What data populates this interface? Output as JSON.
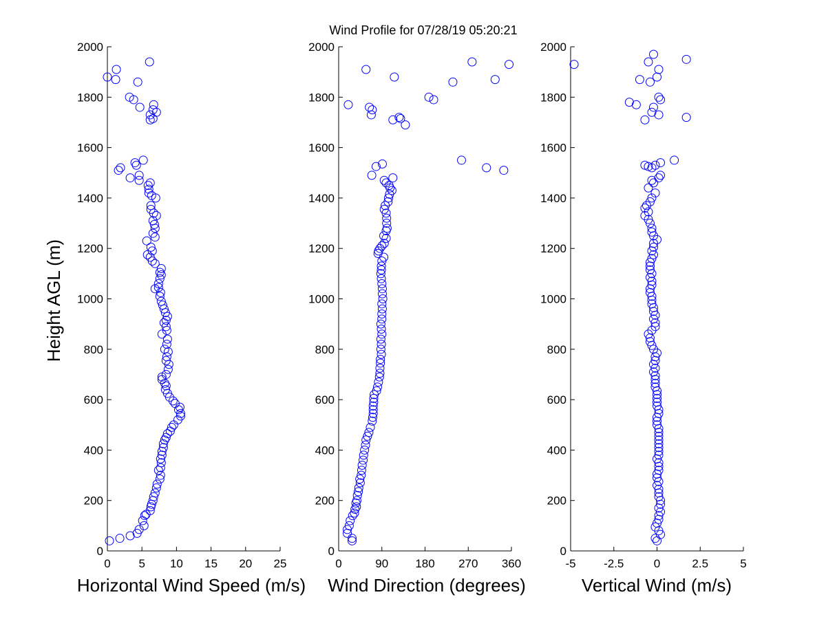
{
  "title": "Wind Profile for  07/28/19 05:20:21",
  "ylabel": "Height AGL (m)",
  "chart_data": [
    {
      "type": "scatter",
      "xlabel": "Horizontal Wind Speed (m/s)",
      "ylabel": "Height AGL (m)",
      "xlim": [
        0,
        25
      ],
      "ylim": [
        0,
        2000
      ],
      "xticks": [
        "0",
        "5",
        "10",
        "15",
        "20",
        "25"
      ],
      "yticks": [
        "0",
        "200",
        "400",
        "600",
        "800",
        "1000",
        "1200",
        "1400",
        "1600",
        "1800",
        "2000"
      ],
      "marker_color": "#0000ff",
      "grid": false,
      "points": [
        [
          0.3,
          40
        ],
        [
          1.8,
          50
        ],
        [
          3.3,
          60
        ],
        [
          4.3,
          70
        ],
        [
          4.6,
          85
        ],
        [
          5.3,
          100
        ],
        [
          5.1,
          120
        ],
        [
          5.4,
          140
        ],
        [
          5.6,
          145
        ],
        [
          6.2,
          160
        ],
        [
          6.3,
          175
        ],
        [
          6.4,
          185
        ],
        [
          6.6,
          200
        ],
        [
          6.7,
          215
        ],
        [
          6.9,
          230
        ],
        [
          7.1,
          250
        ],
        [
          7.2,
          265
        ],
        [
          7.6,
          285
        ],
        [
          7.7,
          300
        ],
        [
          7.4,
          320
        ],
        [
          7.7,
          330
        ],
        [
          7.8,
          350
        ],
        [
          7.7,
          365
        ],
        [
          7.9,
          380
        ],
        [
          7.9,
          395
        ],
        [
          8.1,
          410
        ],
        [
          8.1,
          425
        ],
        [
          8.3,
          440
        ],
        [
          8.5,
          450
        ],
        [
          8.7,
          465
        ],
        [
          9.1,
          475
        ],
        [
          9.3,
          490
        ],
        [
          9.6,
          500
        ],
        [
          10.2,
          520
        ],
        [
          10.6,
          535
        ],
        [
          10.6,
          545
        ],
        [
          10.3,
          560
        ],
        [
          10.5,
          570
        ],
        [
          9.8,
          585
        ],
        [
          9.5,
          595
        ],
        [
          9.0,
          610
        ],
        [
          8.7,
          625
        ],
        [
          8.4,
          640
        ],
        [
          8.5,
          655
        ],
        [
          8.3,
          665
        ],
        [
          7.9,
          680
        ],
        [
          7.9,
          690
        ],
        [
          8.5,
          700
        ],
        [
          8.8,
          720
        ],
        [
          8.9,
          740
        ],
        [
          8.5,
          755
        ],
        [
          8.6,
          770
        ],
        [
          8.8,
          790
        ],
        [
          8.3,
          800
        ],
        [
          8.6,
          820
        ],
        [
          8.7,
          840
        ],
        [
          7.9,
          860
        ],
        [
          8.6,
          875
        ],
        [
          8.5,
          890
        ],
        [
          8.2,
          905
        ],
        [
          8.5,
          915
        ],
        [
          8.7,
          930
        ],
        [
          8.4,
          945
        ],
        [
          8.2,
          960
        ],
        [
          8.0,
          975
        ],
        [
          7.8,
          990
        ],
        [
          7.6,
          1010
        ],
        [
          7.7,
          1025
        ],
        [
          6.9,
          1040
        ],
        [
          7.4,
          1045
        ],
        [
          7.4,
          1060
        ],
        [
          7.6,
          1080
        ],
        [
          7.8,
          1095
        ],
        [
          7.6,
          1105
        ],
        [
          7.8,
          1120
        ],
        [
          6.9,
          1140
        ],
        [
          6.5,
          1150
        ],
        [
          6.2,
          1165
        ],
        [
          5.8,
          1175
        ],
        [
          6.5,
          1190
        ],
        [
          6.3,
          1205
        ],
        [
          5.7,
          1230
        ],
        [
          6.9,
          1245
        ],
        [
          6.6,
          1260
        ],
        [
          6.9,
          1280
        ],
        [
          6.8,
          1295
        ],
        [
          6.6,
          1310
        ],
        [
          7.1,
          1330
        ],
        [
          6.7,
          1340
        ],
        [
          6.3,
          1355
        ],
        [
          6.3,
          1370
        ],
        [
          7.0,
          1400
        ],
        [
          6.4,
          1410
        ],
        [
          6.0,
          1420
        ],
        [
          6.0,
          1435
        ],
        [
          5.9,
          1450
        ],
        [
          6.2,
          1460
        ],
        [
          4.6,
          1470
        ],
        [
          3.3,
          1480
        ],
        [
          4.6,
          1490
        ],
        [
          4.2,
          1530
        ],
        [
          4.0,
          1540
        ],
        [
          5.2,
          1550
        ],
        [
          1.6,
          1510
        ],
        [
          1.9,
          1520
        ],
        [
          6.2,
          1710
        ],
        [
          6.6,
          1715
        ],
        [
          6.2,
          1730
        ],
        [
          7.1,
          1740
        ],
        [
          6.6,
          1750
        ],
        [
          6.7,
          1770
        ],
        [
          3.8,
          1790
        ],
        [
          3.2,
          1800
        ],
        [
          4.7,
          1760
        ],
        [
          4.4,
          1860
        ],
        [
          0.0,
          1880
        ],
        [
          1.2,
          1870
        ],
        [
          1.3,
          1910
        ],
        [
          6.1,
          1940
        ]
      ]
    },
    {
      "type": "scatter",
      "xlabel": "Wind Direction (degrees)",
      "xlim": [
        0,
        360
      ],
      "ylim": [
        0,
        2000
      ],
      "xticks": [
        "0",
        "90",
        "180",
        "270",
        "360"
      ],
      "yticks": [
        "0",
        "200",
        "400",
        "600",
        "800",
        "1000",
        "1200",
        "1400",
        "1600",
        "1800",
        "2000"
      ],
      "marker_color": "#0000ff",
      "grid": false,
      "points": [
        [
          28,
          40
        ],
        [
          28,
          50
        ],
        [
          18,
          70
        ],
        [
          18,
          85
        ],
        [
          22,
          100
        ],
        [
          24,
          120
        ],
        [
          29,
          140
        ],
        [
          33,
          150
        ],
        [
          34,
          165
        ],
        [
          37,
          175
        ],
        [
          36,
          190
        ],
        [
          38,
          200
        ],
        [
          39,
          220
        ],
        [
          41,
          235
        ],
        [
          42,
          250
        ],
        [
          45,
          270
        ],
        [
          44,
          285
        ],
        [
          47,
          300
        ],
        [
          48,
          320
        ],
        [
          49,
          340
        ],
        [
          51,
          360
        ],
        [
          52,
          380
        ],
        [
          54,
          400
        ],
        [
          56,
          420
        ],
        [
          57,
          440
        ],
        [
          60,
          455
        ],
        [
          63,
          470
        ],
        [
          66,
          490
        ],
        [
          70,
          515
        ],
        [
          71,
          530
        ],
        [
          72,
          545
        ],
        [
          72,
          560
        ],
        [
          72,
          575
        ],
        [
          73,
          590
        ],
        [
          73,
          605
        ],
        [
          74,
          620
        ],
        [
          79,
          635
        ],
        [
          81,
          650
        ],
        [
          83,
          670
        ],
        [
          85,
          690
        ],
        [
          86,
          705
        ],
        [
          86,
          725
        ],
        [
          87,
          745
        ],
        [
          87,
          760
        ],
        [
          89,
          780
        ],
        [
          88,
          800
        ],
        [
          89,
          820
        ],
        [
          88,
          840
        ],
        [
          90,
          860
        ],
        [
          89,
          880
        ],
        [
          88,
          900
        ],
        [
          90,
          920
        ],
        [
          90,
          940
        ],
        [
          91,
          960
        ],
        [
          90,
          980
        ],
        [
          92,
          1000
        ],
        [
          91,
          1020
        ],
        [
          91,
          1040
        ],
        [
          90,
          1060
        ],
        [
          89,
          1080
        ],
        [
          88,
          1100
        ],
        [
          89,
          1115
        ],
        [
          89,
          1130
        ],
        [
          90,
          1150
        ],
        [
          94,
          1165
        ],
        [
          82,
          1180
        ],
        [
          83,
          1190
        ],
        [
          86,
          1200
        ],
        [
          90,
          1210
        ],
        [
          95,
          1220
        ],
        [
          99,
          1240
        ],
        [
          94,
          1250
        ],
        [
          99,
          1270
        ],
        [
          101,
          1280
        ],
        [
          100,
          1300
        ],
        [
          100,
          1320
        ],
        [
          99,
          1340
        ],
        [
          95,
          1355
        ],
        [
          97,
          1370
        ],
        [
          103,
          1385
        ],
        [
          104,
          1400
        ],
        [
          106,
          1415
        ],
        [
          111,
          1430
        ],
        [
          107,
          1440
        ],
        [
          105,
          1450
        ],
        [
          99,
          1460
        ],
        [
          95,
          1470
        ],
        [
          113,
          1480
        ],
        [
          69,
          1490
        ],
        [
          78,
          1525
        ],
        [
          91,
          1535
        ],
        [
          256,
          1550
        ],
        [
          344,
          1510
        ],
        [
          308,
          1520
        ],
        [
          113,
          1710
        ],
        [
          129,
          1715
        ],
        [
          139,
          1690
        ],
        [
          126,
          1720
        ],
        [
          68,
          1730
        ],
        [
          70,
          1750
        ],
        [
          64,
          1760
        ],
        [
          20,
          1770
        ],
        [
          188,
          1800
        ],
        [
          198,
          1790
        ],
        [
          238,
          1860
        ],
        [
          116,
          1880
        ],
        [
          57,
          1910
        ],
        [
          326,
          1870
        ],
        [
          278,
          1940
        ],
        [
          355,
          1930
        ]
      ]
    },
    {
      "type": "scatter",
      "xlabel": "Vertical Wind (m/s)",
      "xlim": [
        -5,
        5
      ],
      "ylim": [
        0,
        2000
      ],
      "xticks": [
        "-5",
        "-2.5",
        "0",
        "2.5",
        "5"
      ],
      "yticks": [
        "0",
        "200",
        "400",
        "600",
        "800",
        "1000",
        "1200",
        "1400",
        "1600",
        "1800",
        "2000"
      ],
      "marker_color": "#0000ff",
      "grid": false,
      "points": [
        [
          -0.1,
          50
        ],
        [
          0.0,
          40
        ],
        [
          0.2,
          65
        ],
        [
          0.1,
          80
        ],
        [
          -0.1,
          95
        ],
        [
          0.0,
          110
        ],
        [
          0.1,
          125
        ],
        [
          0.1,
          140
        ],
        [
          0.2,
          155
        ],
        [
          0.1,
          170
        ],
        [
          0.2,
          185
        ],
        [
          0.2,
          200
        ],
        [
          0.1,
          215
        ],
        [
          0.1,
          230
        ],
        [
          0.1,
          245
        ],
        [
          0.0,
          260
        ],
        [
          0.1,
          275
        ],
        [
          0.0,
          290
        ],
        [
          0.0,
          305
        ],
        [
          0.1,
          320
        ],
        [
          0.1,
          335
        ],
        [
          0.1,
          350
        ],
        [
          0.0,
          365
        ],
        [
          0.1,
          380
        ],
        [
          0.1,
          395
        ],
        [
          0.1,
          410
        ],
        [
          0.1,
          425
        ],
        [
          0.1,
          440
        ],
        [
          0.1,
          455
        ],
        [
          0.1,
          470
        ],
        [
          0.1,
          485
        ],
        [
          0.0,
          500
        ],
        [
          0.0,
          515
        ],
        [
          0.0,
          530
        ],
        [
          0.1,
          545
        ],
        [
          0.1,
          560
        ],
        [
          0.0,
          575
        ],
        [
          0.0,
          590
        ],
        [
          0.0,
          605
        ],
        [
          0.0,
          620
        ],
        [
          0.0,
          635
        ],
        [
          -0.1,
          650
        ],
        [
          -0.1,
          665
        ],
        [
          -0.1,
          680
        ],
        [
          -0.1,
          695
        ],
        [
          -0.2,
          710
        ],
        [
          -0.1,
          725
        ],
        [
          -0.2,
          740
        ],
        [
          -0.1,
          755
        ],
        [
          -0.1,
          770
        ],
        [
          0.0,
          785
        ],
        [
          -0.2,
          800
        ],
        [
          -0.3,
          815
        ],
        [
          -0.4,
          830
        ],
        [
          -0.4,
          845
        ],
        [
          -0.5,
          860
        ],
        [
          -0.3,
          875
        ],
        [
          -0.1,
          890
        ],
        [
          -0.1,
          905
        ],
        [
          -0.2,
          920
        ],
        [
          -0.1,
          935
        ],
        [
          -0.2,
          950
        ],
        [
          -0.2,
          965
        ],
        [
          -0.3,
          980
        ],
        [
          -0.3,
          995
        ],
        [
          -0.3,
          1010
        ],
        [
          -0.4,
          1025
        ],
        [
          -0.4,
          1040
        ],
        [
          -0.3,
          1055
        ],
        [
          -0.3,
          1070
        ],
        [
          -0.4,
          1085
        ],
        [
          -0.3,
          1100
        ],
        [
          -0.4,
          1115
        ],
        [
          -0.4,
          1130
        ],
        [
          -0.4,
          1145
        ],
        [
          -0.3,
          1160
        ],
        [
          -0.2,
          1175
        ],
        [
          -0.3,
          1190
        ],
        [
          -0.2,
          1205
        ],
        [
          -0.2,
          1220
        ],
        [
          0.0,
          1235
        ],
        [
          -0.2,
          1250
        ],
        [
          -0.3,
          1265
        ],
        [
          -0.3,
          1280
        ],
        [
          -0.4,
          1300
        ],
        [
          -0.5,
          1315
        ],
        [
          -0.7,
          1330
        ],
        [
          -0.5,
          1345
        ],
        [
          -0.7,
          1360
        ],
        [
          -0.6,
          1370
        ],
        [
          -0.4,
          1385
        ],
        [
          -0.3,
          1400
        ],
        [
          -0.1,
          1420
        ],
        [
          -0.5,
          1440
        ],
        [
          -0.2,
          1460
        ],
        [
          -0.3,
          1470
        ],
        [
          0.1,
          1480
        ],
        [
          0.2,
          1490
        ],
        [
          -0.5,
          1525
        ],
        [
          -0.7,
          1530
        ],
        [
          -0.3,
          1520
        ],
        [
          -0.1,
          1530
        ],
        [
          0.2,
          1540
        ],
        [
          1.0,
          1550
        ],
        [
          -0.7,
          1710
        ],
        [
          -0.3,
          1740
        ],
        [
          -0.2,
          1760
        ],
        [
          0.1,
          1730
        ],
        [
          -1.6,
          1780
        ],
        [
          -1.2,
          1770
        ],
        [
          0.1,
          1800
        ],
        [
          0.2,
          1790
        ],
        [
          -0.4,
          1860
        ],
        [
          0.0,
          1880
        ],
        [
          -1.0,
          1870
        ],
        [
          0.1,
          1910
        ],
        [
          -0.5,
          1940
        ],
        [
          -0.2,
          1970
        ],
        [
          1.7,
          1720
        ],
        [
          1.7,
          1950
        ],
        [
          -4.8,
          1930
        ]
      ]
    }
  ]
}
